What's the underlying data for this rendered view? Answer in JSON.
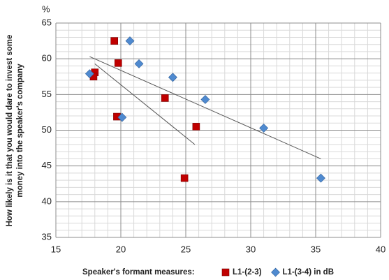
{
  "chart_data": {
    "type": "scatter",
    "y_unit": "%",
    "y_label": [
      "How likely is it that you would dare to invest some",
      "money into the speaker's company"
    ],
    "x_label": "Speaker's formant measures:",
    "xlim": [
      15,
      40
    ],
    "xticks": [
      15,
      20,
      25,
      30,
      35,
      40
    ],
    "ylim": [
      35,
      65
    ],
    "yticks": [
      35,
      40,
      45,
      50,
      55,
      60,
      65
    ],
    "grid": true,
    "series": [
      {
        "name": "L1-(2-3)",
        "color": "#c00000",
        "marker": "square",
        "x": [
          19.5,
          19.8,
          18.0,
          17.9,
          19.7,
          23.4,
          25.8,
          24.9
        ],
        "values": [
          62.5,
          59.4,
          58.1,
          57.5,
          51.9,
          54.5,
          50.5,
          43.3
        ],
        "trendline": {
          "x": [
            18.0,
            25.7
          ],
          "values": [
            59.3,
            48.0
          ]
        }
      },
      {
        "name": "L1-(3-4) in dB",
        "color": "#4f8ad0",
        "marker": "diamond",
        "x": [
          20.7,
          21.4,
          17.6,
          24.0,
          20.1,
          26.5,
          31.0,
          35.4
        ],
        "values": [
          62.5,
          59.3,
          57.9,
          57.4,
          51.8,
          54.3,
          50.3,
          43.3
        ],
        "trendline": {
          "x": [
            17.6,
            35.4
          ],
          "values": [
            60.3,
            46.0
          ]
        }
      }
    ]
  }
}
